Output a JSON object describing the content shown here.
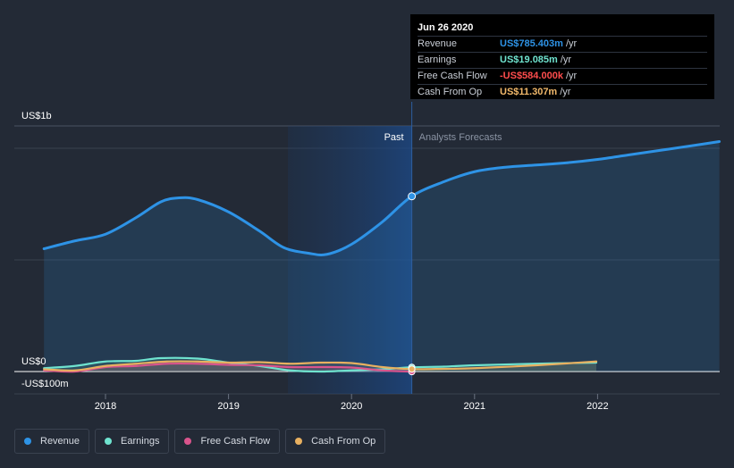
{
  "tooltip": {
    "date": "Jun 26 2020",
    "rows": [
      {
        "label": "Revenue",
        "value": "US$785.403m",
        "unit": "/yr",
        "color": "#2e93e6"
      },
      {
        "label": "Earnings",
        "value": "US$19.085m",
        "unit": "/yr",
        "color": "#6fe3cf"
      },
      {
        "label": "Free Cash Flow",
        "value": "-US$584.000k",
        "unit": "/yr",
        "color": "#ff4d4d"
      },
      {
        "label": "Cash From Op",
        "value": "US$11.307m",
        "unit": "/yr",
        "color": "#f2b96b"
      }
    ]
  },
  "labels": {
    "past": "Past",
    "forecast": "Analysts Forecasts",
    "y_top": "US$1b",
    "y_zero": "US$0",
    "y_neg": "-US$100m"
  },
  "legend": [
    {
      "label": "Revenue",
      "color": "#2e93e6"
    },
    {
      "label": "Earnings",
      "color": "#6fe3cf"
    },
    {
      "label": "Free Cash Flow",
      "color": "#d9548c"
    },
    {
      "label": "Cash From Op",
      "color": "#e8b060"
    }
  ],
  "chart_data": {
    "type": "line",
    "x_ticks": [
      "2018",
      "2019",
      "2020",
      "2021",
      "2022"
    ],
    "ylim": [
      -100,
      1000
    ],
    "divider_x": 2020.49,
    "series": [
      {
        "name": "Revenue",
        "color": "#2e93e6",
        "x": [
          2017.5,
          2017.75,
          2018.0,
          2018.25,
          2018.45,
          2018.6,
          2018.75,
          2019.0,
          2019.25,
          2019.45,
          2019.65,
          2019.8,
          2020.0,
          2020.25,
          2020.49,
          2020.75,
          2021.0,
          2021.25,
          2021.5,
          2021.75,
          2022.0,
          2022.25,
          2022.5,
          2022.75,
          2022.99
        ],
        "y": [
          550,
          585,
          615,
          690,
          760,
          778,
          770,
          715,
          630,
          555,
          530,
          525,
          570,
          670,
          785,
          850,
          895,
          915,
          925,
          935,
          950,
          970,
          990,
          1010,
          1030
        ]
      },
      {
        "name": "Earnings",
        "color": "#6fe3cf",
        "x": [
          2017.5,
          2017.75,
          2018.0,
          2018.25,
          2018.45,
          2018.75,
          2019.0,
          2019.25,
          2019.5,
          2019.75,
          2020.0,
          2020.25,
          2020.49,
          2020.75,
          2021.0,
          2021.5,
          2021.99
        ],
        "y": [
          15,
          25,
          45,
          48,
          60,
          58,
          40,
          25,
          5,
          0,
          5,
          10,
          19,
          22,
          28,
          35,
          40
        ]
      },
      {
        "name": "Free Cash Flow",
        "color": "#d9548c",
        "x": [
          2017.5,
          2017.75,
          2018.0,
          2018.25,
          2018.5,
          2018.75,
          2019.0,
          2019.25,
          2019.5,
          2019.75,
          2020.0,
          2020.25,
          2020.49
        ],
        "y": [
          5,
          0,
          20,
          25,
          35,
          35,
          30,
          28,
          20,
          20,
          18,
          5,
          -0.584
        ]
      },
      {
        "name": "Cash From Op",
        "color": "#e8b060",
        "x": [
          2017.5,
          2017.75,
          2018.0,
          2018.25,
          2018.5,
          2018.75,
          2019.0,
          2019.25,
          2019.5,
          2019.75,
          2020.0,
          2020.25,
          2020.49,
          2020.75,
          2021.0,
          2021.5,
          2021.99
        ],
        "y": [
          10,
          5,
          25,
          35,
          45,
          45,
          40,
          42,
          35,
          40,
          38,
          20,
          11,
          12,
          15,
          28,
          45
        ]
      }
    ]
  }
}
